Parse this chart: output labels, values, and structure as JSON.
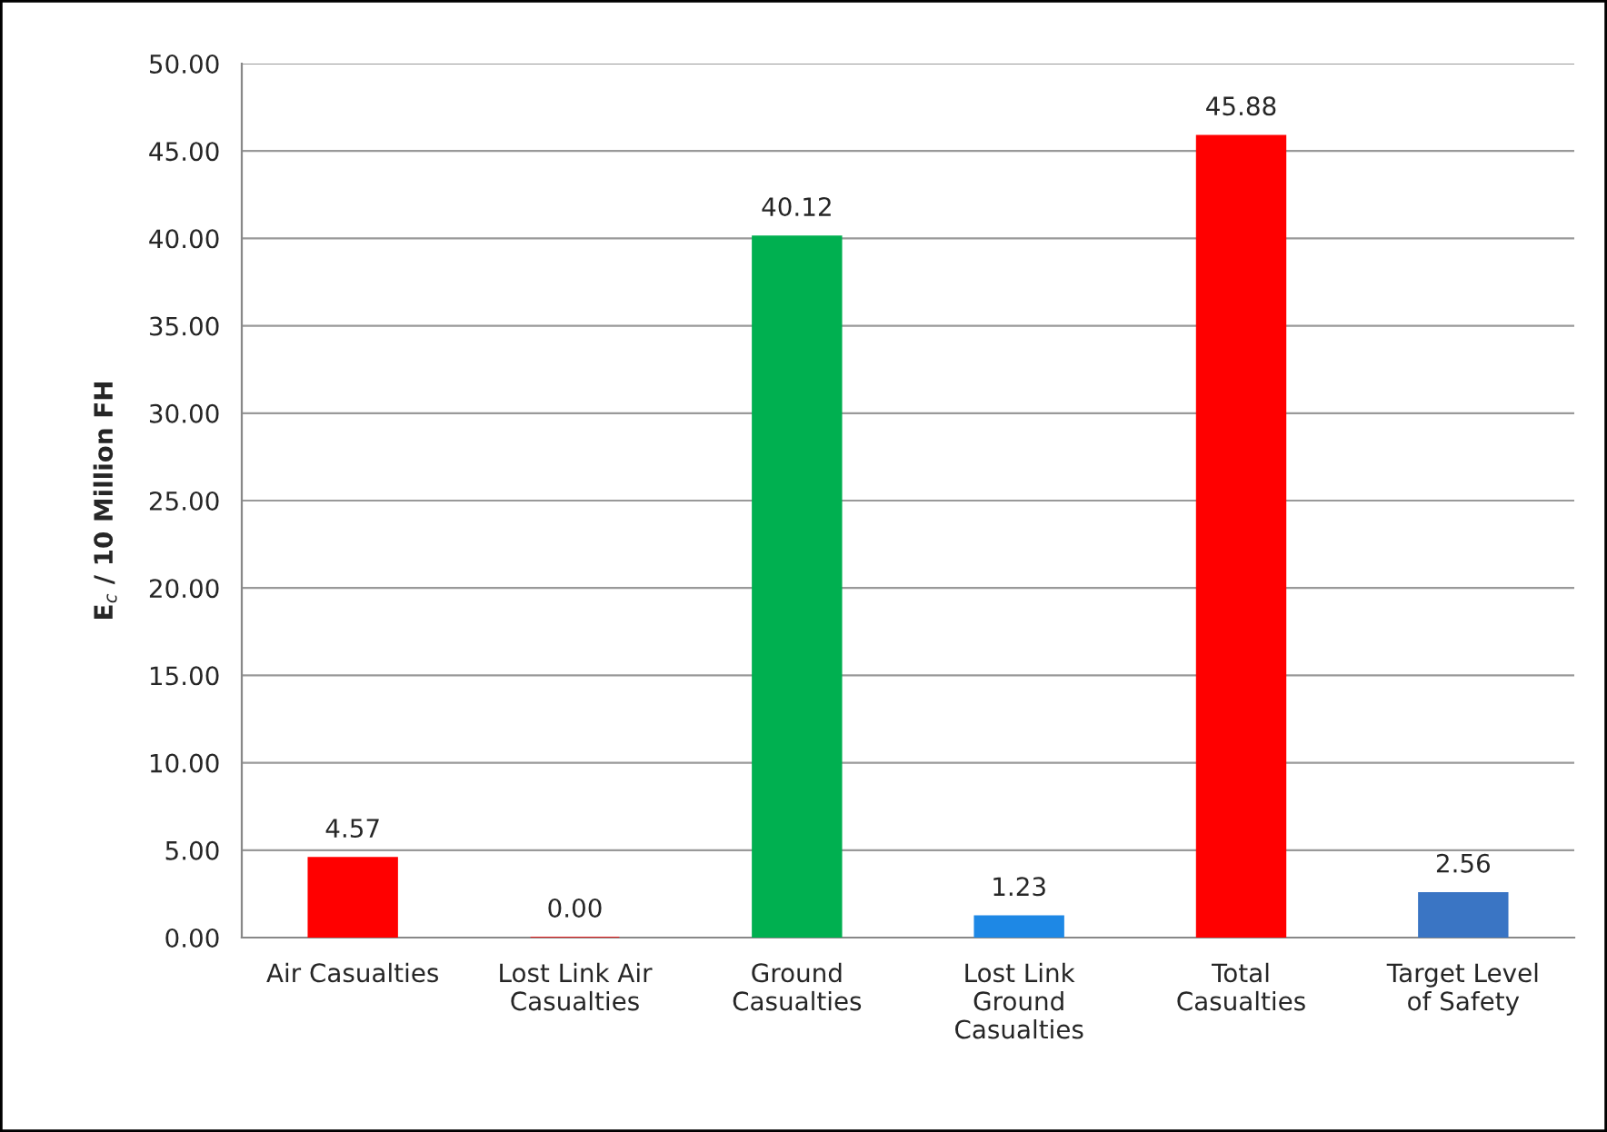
{
  "chart_data": {
    "type": "bar",
    "ylabel": "E$_{c}$ / 10 Million FH",
    "categories": [
      "Air Casualties",
      "Lost Link Air\nCasualties",
      "Ground\nCasualties",
      "Lost Link\nGround\nCasualties",
      "Total\nCasualties",
      "Target Level\nof Safety"
    ],
    "values": [
      4.57,
      0.0,
      40.12,
      1.23,
      45.88,
      2.56
    ],
    "colors": [
      "#ff0000",
      "#ff0000",
      "#00b050",
      "#1e88e5",
      "#ff0000",
      "#3a75c4"
    ],
    "value_labels": [
      "4.57",
      "0.00",
      "40.12",
      "1.23",
      "45.88",
      "2.56"
    ],
    "ylim": [
      0,
      50
    ],
    "yticks": [
      {
        "value": 0,
        "label": "0.00"
      },
      {
        "value": 5,
        "label": "5.00"
      },
      {
        "value": 10,
        "label": "10.00"
      },
      {
        "value": 15,
        "label": "15.00"
      },
      {
        "value": 20,
        "label": "20.00"
      },
      {
        "value": 25,
        "label": "25.00"
      },
      {
        "value": 30,
        "label": "30.00"
      },
      {
        "value": 35,
        "label": "35.00"
      },
      {
        "value": 40,
        "label": "40.00"
      },
      {
        "value": 45,
        "label": "45.00"
      },
      {
        "value": 50,
        "label": "50.00"
      }
    ],
    "grid": "y"
  }
}
